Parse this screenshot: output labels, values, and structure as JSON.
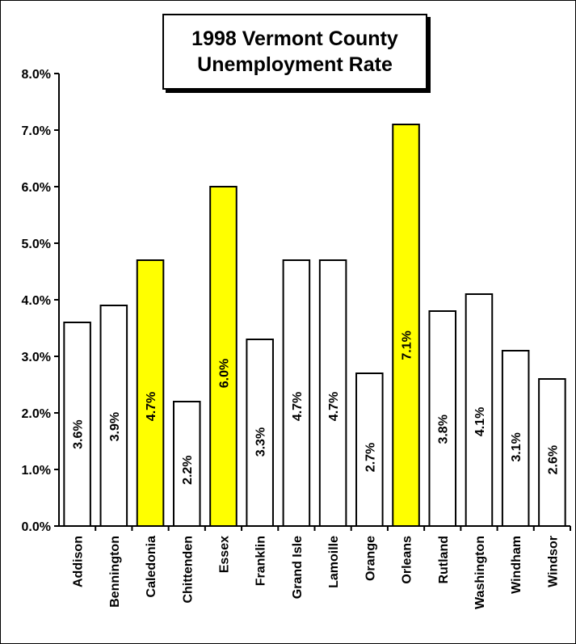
{
  "chart_data": {
    "type": "bar",
    "title_lines": [
      "1998 Vermont County",
      "Unemployment Rate"
    ],
    "categories": [
      "Addison",
      "Bennington",
      "Caledonia",
      "Chittenden",
      "Essex",
      "Franklin",
      "Grand Isle",
      "Lamoille",
      "Orange",
      "Orleans",
      "Rutland",
      "Washington",
      "Windham",
      "Windsor"
    ],
    "values": [
      3.6,
      3.9,
      4.7,
      2.2,
      6.0,
      3.3,
      4.7,
      4.7,
      2.7,
      7.1,
      3.8,
      4.1,
      3.1,
      2.6
    ],
    "data_labels": [
      "3.6%",
      "3.9%",
      "4.7%",
      "2.2%",
      "6.0%",
      "3.3%",
      "4.7%",
      "4.7%",
      "2.7%",
      "7.1%",
      "3.8%",
      "4.1%",
      "3.1%",
      "2.6%"
    ],
    "highlighted": [
      "Caledonia",
      "Essex",
      "Orleans"
    ],
    "ylim": [
      0,
      8
    ],
    "yticks": [
      0,
      1,
      2,
      3,
      4,
      5,
      6,
      7,
      8
    ],
    "ytick_labels": [
      "0.0%",
      "1.0%",
      "2.0%",
      "3.0%",
      "4.0%",
      "5.0%",
      "6.0%",
      "7.0%",
      "8.0%"
    ],
    "xlabel": "",
    "ylabel": "",
    "grid": false,
    "legend": "none",
    "colors": {
      "bar": "#ffffff",
      "highlight": "#ffff00",
      "stroke": "#000000"
    }
  }
}
